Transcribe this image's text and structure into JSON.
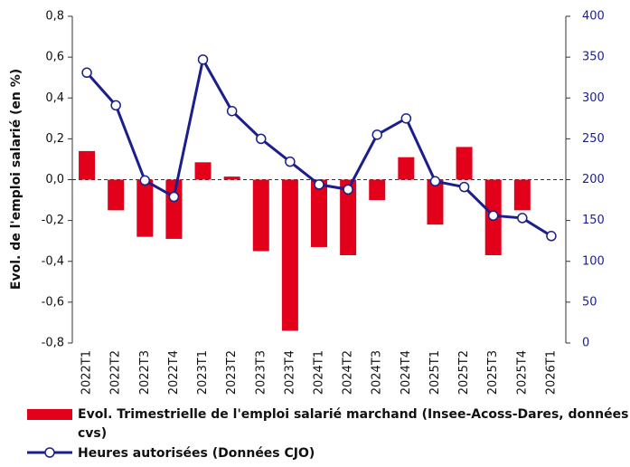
{
  "chart_data": {
    "type": "bar_line",
    "y_label": "Evol. de l'emploi salarié (en %)",
    "categories": [
      "2022T1",
      "2022T2",
      "2022T3",
      "2022T4",
      "2023T1",
      "2023T2",
      "2023T3",
      "2023T4",
      "2024T1",
      "2024T2",
      "2024T3",
      "2024T4",
      "2025T1",
      "2025T2",
      "2025T3",
      "2025T4",
      "2026T1"
    ],
    "series": [
      {
        "name": "Evol. Trimestrielle de l'emploi salarié marchand (Insee-Acoss-Dares, données cvs)",
        "type": "bar",
        "color": "#e2001a",
        "values": [
          0.14,
          -0.15,
          -0.28,
          -0.29,
          0.085,
          0.015,
          -0.35,
          -0.74,
          -0.33,
          -0.37,
          -0.1,
          0.11,
          -0.22,
          0.16,
          -0.37,
          -0.15,
          null
        ]
      },
      {
        "name": "Heures autorisées (Données CJO)",
        "type": "line",
        "axis": "y2",
        "color": "#1a1f8c",
        "values": [
          331,
          291,
          199,
          179,
          347,
          284,
          250,
          222,
          194,
          188,
          255,
          275,
          198,
          191,
          156,
          153,
          131
        ]
      }
    ],
    "ylim": [
      -0.8,
      0.8
    ],
    "yticks": [
      {
        "value": -0.8,
        "label": "-0,8"
      },
      {
        "value": -0.6,
        "label": "-0,6"
      },
      {
        "value": -0.4,
        "label": "-0,4"
      },
      {
        "value": -0.2,
        "label": "-0,2"
      },
      {
        "value": 0,
        "label": "0,0"
      },
      {
        "value": 0.2,
        "label": "0,2"
      },
      {
        "value": 0.4,
        "label": "0,4"
      },
      {
        "value": 0.6,
        "label": "0,6"
      },
      {
        "value": 0.8,
        "label": "0,8"
      }
    ],
    "y2lim": [
      0,
      400
    ],
    "y2ticks": [
      0,
      50,
      100,
      150,
      200,
      250,
      300,
      350,
      400
    ]
  }
}
